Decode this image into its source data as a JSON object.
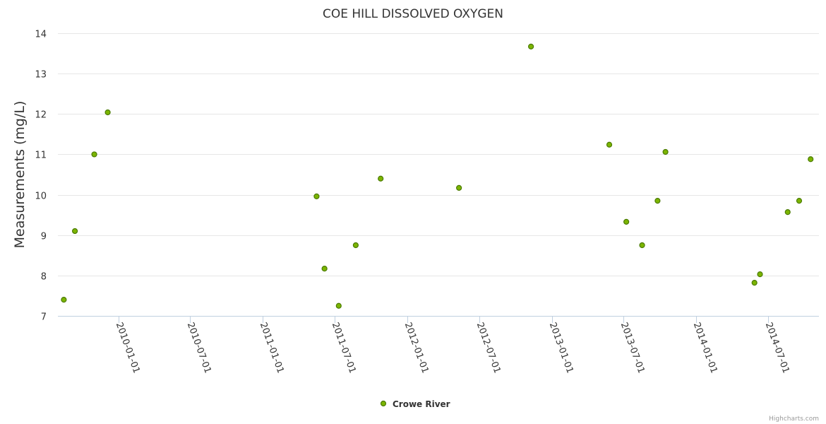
{
  "chart_data": {
    "type": "scatter",
    "title": "COE HILL DISSOLVED OXYGEN",
    "xlabel": "",
    "ylabel": "Measurements (mg/L)",
    "ylim": [
      7,
      14
    ],
    "yticks": [
      "7",
      "8",
      "9",
      "10",
      "11",
      "12",
      "13",
      "14"
    ],
    "xlim": [
      "2009-08-01",
      "2014-11-07"
    ],
    "xticks": [
      "2010-01-01",
      "2010-07-01",
      "2011-01-01",
      "2011-07-01",
      "2012-01-01",
      "2012-07-01",
      "2013-01-01",
      "2013-07-01",
      "2014-01-01",
      "2014-07-01"
    ],
    "grid": true,
    "legend_position": "bottom-center",
    "series": [
      {
        "name": "Crowe River",
        "color": "#7cb500",
        "points": [
          {
            "x": "2009-08-16",
            "y": 7.4
          },
          {
            "x": "2009-09-13",
            "y": 9.1
          },
          {
            "x": "2009-11-01",
            "y": 11.0
          },
          {
            "x": "2009-12-05",
            "y": 12.04
          },
          {
            "x": "2011-05-17",
            "y": 9.96
          },
          {
            "x": "2011-06-06",
            "y": 8.17
          },
          {
            "x": "2011-07-12",
            "y": 7.25
          },
          {
            "x": "2011-08-24",
            "y": 8.75
          },
          {
            "x": "2011-10-26",
            "y": 10.4
          },
          {
            "x": "2012-05-11",
            "y": 10.17
          },
          {
            "x": "2012-11-09",
            "y": 13.67
          },
          {
            "x": "2013-05-26",
            "y": 11.24
          },
          {
            "x": "2013-07-08",
            "y": 9.33
          },
          {
            "x": "2013-08-17",
            "y": 8.75
          },
          {
            "x": "2013-09-25",
            "y": 9.85
          },
          {
            "x": "2013-10-15",
            "y": 11.06
          },
          {
            "x": "2014-05-28",
            "y": 7.82
          },
          {
            "x": "2014-06-11",
            "y": 8.03
          },
          {
            "x": "2014-08-20",
            "y": 9.57
          },
          {
            "x": "2014-09-18",
            "y": 9.85
          },
          {
            "x": "2014-10-17",
            "y": 10.88
          }
        ]
      }
    ]
  },
  "credits": "Highcharts.com"
}
